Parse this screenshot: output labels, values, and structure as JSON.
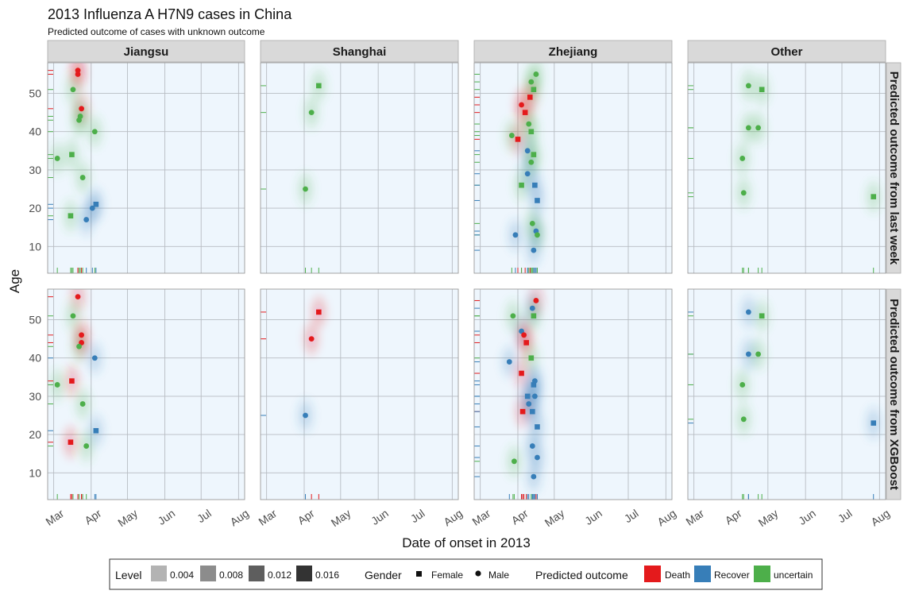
{
  "title": "2013 Influenza A H7N9 cases in China",
  "subtitle": "Predicted outcome of cases with unknown outcome",
  "colors": {
    "Death": "#e41a1c",
    "Recover": "#377eb8",
    "uncertain": "#4daf4a"
  },
  "chart_data": {
    "type": "scatter",
    "xlabel": "Date of onset in 2013",
    "ylabel": "Age",
    "x_ticks": [
      "Mar",
      "Apr",
      "May",
      "Jun",
      "Jul",
      "Aug"
    ],
    "y_ticks": [
      10,
      20,
      30,
      40,
      50
    ],
    "ylim": [
      3,
      58
    ],
    "columns": [
      "Jiangsu",
      "Shanghai",
      "Zhejiang",
      "Other"
    ],
    "rows": [
      "Predicted outcome from last week",
      "Predicted outcome from XGBoost"
    ],
    "legend": {
      "level_title": "Level",
      "levels": [
        "0.004",
        "0.008",
        "0.012",
        "0.016"
      ],
      "gender_title": "Gender",
      "genders": [
        "Female",
        "Male"
      ],
      "outcome_title": "Predicted outcome",
      "outcomes": [
        "Death",
        "Recover",
        "uncertain"
      ]
    },
    "panels": [
      {
        "row": 0,
        "col": 0,
        "points": [
          {
            "date": "2013-03-21",
            "age": 56,
            "gender": "Male",
            "outcome": "Death"
          },
          {
            "date": "2013-03-21",
            "age": 55,
            "gender": "Male",
            "outcome": "Death"
          },
          {
            "date": "2013-03-17",
            "age": 51,
            "gender": "Male",
            "outcome": "uncertain"
          },
          {
            "date": "2013-03-24",
            "age": 46,
            "gender": "Male",
            "outcome": "Death"
          },
          {
            "date": "2013-03-22",
            "age": 43,
            "gender": "Male",
            "outcome": "uncertain"
          },
          {
            "date": "2013-03-23",
            "age": 44,
            "gender": "Male",
            "outcome": "uncertain"
          },
          {
            "date": "2013-04-04",
            "age": 40,
            "gender": "Male",
            "outcome": "uncertain"
          },
          {
            "date": "2013-03-16",
            "age": 34,
            "gender": "Female",
            "outcome": "uncertain"
          },
          {
            "date": "2013-03-04",
            "age": 33,
            "gender": "Male",
            "outcome": "uncertain"
          },
          {
            "date": "2013-03-25",
            "age": 28,
            "gender": "Male",
            "outcome": "uncertain"
          },
          {
            "date": "2013-04-05",
            "age": 21,
            "gender": "Female",
            "outcome": "Recover"
          },
          {
            "date": "2013-04-02",
            "age": 20,
            "gender": "Male",
            "outcome": "Recover"
          },
          {
            "date": "2013-03-15",
            "age": 18,
            "gender": "Female",
            "outcome": "uncertain"
          },
          {
            "date": "2013-03-28",
            "age": 17,
            "gender": "Male",
            "outcome": "Recover"
          }
        ]
      },
      {
        "row": 0,
        "col": 1,
        "points": [
          {
            "date": "2013-04-13",
            "age": 52,
            "gender": "Female",
            "outcome": "uncertain"
          },
          {
            "date": "2013-04-07",
            "age": 45,
            "gender": "Male",
            "outcome": "uncertain"
          },
          {
            "date": "2013-04-02",
            "age": 25,
            "gender": "Male",
            "outcome": "uncertain"
          }
        ]
      },
      {
        "row": 0,
        "col": 2,
        "points": [
          {
            "date": "2013-04-16",
            "age": 55,
            "gender": "Male",
            "outcome": "uncertain"
          },
          {
            "date": "2013-04-12",
            "age": 53,
            "gender": "Male",
            "outcome": "uncertain"
          },
          {
            "date": "2013-04-14",
            "age": 51,
            "gender": "Female",
            "outcome": "uncertain"
          },
          {
            "date": "2013-04-11",
            "age": 49,
            "gender": "Female",
            "outcome": "Death"
          },
          {
            "date": "2013-04-04",
            "age": 47,
            "gender": "Male",
            "outcome": "Death"
          },
          {
            "date": "2013-04-07",
            "age": 45,
            "gender": "Female",
            "outcome": "Death"
          },
          {
            "date": "2013-04-10",
            "age": 42,
            "gender": "Male",
            "outcome": "uncertain"
          },
          {
            "date": "2013-04-12",
            "age": 40,
            "gender": "Female",
            "outcome": "uncertain"
          },
          {
            "date": "2013-03-27",
            "age": 39,
            "gender": "Male",
            "outcome": "uncertain"
          },
          {
            "date": "2013-04-01",
            "age": 38,
            "gender": "Female",
            "outcome": "Death"
          },
          {
            "date": "2013-04-09",
            "age": 35,
            "gender": "Male",
            "outcome": "Recover"
          },
          {
            "date": "2013-04-14",
            "age": 34,
            "gender": "Female",
            "outcome": "uncertain"
          },
          {
            "date": "2013-04-12",
            "age": 32,
            "gender": "Male",
            "outcome": "uncertain"
          },
          {
            "date": "2013-04-09",
            "age": 29,
            "gender": "Male",
            "outcome": "Recover"
          },
          {
            "date": "2013-04-04",
            "age": 26,
            "gender": "Female",
            "outcome": "uncertain"
          },
          {
            "date": "2013-04-15",
            "age": 26,
            "gender": "Female",
            "outcome": "Recover"
          },
          {
            "date": "2013-04-17",
            "age": 22,
            "gender": "Female",
            "outcome": "Recover"
          },
          {
            "date": "2013-04-13",
            "age": 16,
            "gender": "Male",
            "outcome": "uncertain"
          },
          {
            "date": "2013-04-16",
            "age": 14,
            "gender": "Male",
            "outcome": "Recover"
          },
          {
            "date": "2013-04-17",
            "age": 13,
            "gender": "Male",
            "outcome": "uncertain"
          },
          {
            "date": "2013-03-30",
            "age": 13,
            "gender": "Male",
            "outcome": "Recover"
          },
          {
            "date": "2013-04-14",
            "age": 9,
            "gender": "Male",
            "outcome": "Recover"
          }
        ]
      },
      {
        "row": 0,
        "col": 3,
        "points": [
          {
            "date": "2013-04-15",
            "age": 52,
            "gender": "Male",
            "outcome": "uncertain"
          },
          {
            "date": "2013-04-26",
            "age": 51,
            "gender": "Female",
            "outcome": "uncertain"
          },
          {
            "date": "2013-04-15",
            "age": 41,
            "gender": "Male",
            "outcome": "uncertain"
          },
          {
            "date": "2013-04-23",
            "age": 41,
            "gender": "Male",
            "outcome": "uncertain"
          },
          {
            "date": "2013-04-10",
            "age": 33,
            "gender": "Male",
            "outcome": "uncertain"
          },
          {
            "date": "2013-04-11",
            "age": 24,
            "gender": "Male",
            "outcome": "uncertain"
          },
          {
            "date": "2013-07-27",
            "age": 23,
            "gender": "Female",
            "outcome": "uncertain"
          }
        ]
      },
      {
        "row": 1,
        "col": 0,
        "points": [
          {
            "date": "2013-03-21",
            "age": 56,
            "gender": "Male",
            "outcome": "Death"
          },
          {
            "date": "2013-03-17",
            "age": 51,
            "gender": "Male",
            "outcome": "uncertain"
          },
          {
            "date": "2013-03-24",
            "age": 46,
            "gender": "Male",
            "outcome": "Death"
          },
          {
            "date": "2013-03-24",
            "age": 44,
            "gender": "Male",
            "outcome": "Death"
          },
          {
            "date": "2013-03-22",
            "age": 43,
            "gender": "Male",
            "outcome": "uncertain"
          },
          {
            "date": "2013-04-04",
            "age": 40,
            "gender": "Male",
            "outcome": "Recover"
          },
          {
            "date": "2013-03-16",
            "age": 34,
            "gender": "Female",
            "outcome": "Death"
          },
          {
            "date": "2013-03-04",
            "age": 33,
            "gender": "Male",
            "outcome": "uncertain"
          },
          {
            "date": "2013-03-25",
            "age": 28,
            "gender": "Male",
            "outcome": "uncertain"
          },
          {
            "date": "2013-04-05",
            "age": 21,
            "gender": "Female",
            "outcome": "Recover"
          },
          {
            "date": "2013-03-15",
            "age": 18,
            "gender": "Female",
            "outcome": "Death"
          },
          {
            "date": "2013-03-28",
            "age": 17,
            "gender": "Male",
            "outcome": "uncertain"
          }
        ]
      },
      {
        "row": 1,
        "col": 1,
        "points": [
          {
            "date": "2013-04-13",
            "age": 52,
            "gender": "Female",
            "outcome": "Death"
          },
          {
            "date": "2013-04-07",
            "age": 45,
            "gender": "Male",
            "outcome": "Death"
          },
          {
            "date": "2013-04-02",
            "age": 25,
            "gender": "Male",
            "outcome": "Recover"
          }
        ]
      },
      {
        "row": 1,
        "col": 2,
        "points": [
          {
            "date": "2013-04-16",
            "age": 55,
            "gender": "Male",
            "outcome": "Death"
          },
          {
            "date": "2013-04-13",
            "age": 53,
            "gender": "Male",
            "outcome": "Recover"
          },
          {
            "date": "2013-04-14",
            "age": 51,
            "gender": "Female",
            "outcome": "uncertain"
          },
          {
            "date": "2013-03-28",
            "age": 51,
            "gender": "Male",
            "outcome": "uncertain"
          },
          {
            "date": "2013-04-04",
            "age": 47,
            "gender": "Male",
            "outcome": "Recover"
          },
          {
            "date": "2013-04-06",
            "age": 46,
            "gender": "Male",
            "outcome": "Death"
          },
          {
            "date": "2013-04-08",
            "age": 44,
            "gender": "Female",
            "outcome": "Death"
          },
          {
            "date": "2013-04-12",
            "age": 40,
            "gender": "Female",
            "outcome": "uncertain"
          },
          {
            "date": "2013-03-25",
            "age": 39,
            "gender": "Male",
            "outcome": "Recover"
          },
          {
            "date": "2013-04-04",
            "age": 36,
            "gender": "Female",
            "outcome": "Death"
          },
          {
            "date": "2013-04-15",
            "age": 34,
            "gender": "Male",
            "outcome": "Recover"
          },
          {
            "date": "2013-04-14",
            "age": 33,
            "gender": "Female",
            "outcome": "Recover"
          },
          {
            "date": "2013-04-09",
            "age": 30,
            "gender": "Female",
            "outcome": "Recover"
          },
          {
            "date": "2013-04-15",
            "age": 30,
            "gender": "Male",
            "outcome": "Recover"
          },
          {
            "date": "2013-04-10",
            "age": 28,
            "gender": "Male",
            "outcome": "Recover"
          },
          {
            "date": "2013-04-05",
            "age": 26,
            "gender": "Female",
            "outcome": "Death"
          },
          {
            "date": "2013-04-13",
            "age": 26,
            "gender": "Female",
            "outcome": "Recover"
          },
          {
            "date": "2013-04-17",
            "age": 22,
            "gender": "Female",
            "outcome": "Recover"
          },
          {
            "date": "2013-04-13",
            "age": 17,
            "gender": "Male",
            "outcome": "Recover"
          },
          {
            "date": "2013-04-17",
            "age": 14,
            "gender": "Male",
            "outcome": "Recover"
          },
          {
            "date": "2013-03-29",
            "age": 13,
            "gender": "Male",
            "outcome": "uncertain"
          },
          {
            "date": "2013-04-14",
            "age": 9,
            "gender": "Male",
            "outcome": "Recover"
          }
        ]
      },
      {
        "row": 1,
        "col": 3,
        "points": [
          {
            "date": "2013-04-15",
            "age": 52,
            "gender": "Male",
            "outcome": "Recover"
          },
          {
            "date": "2013-04-26",
            "age": 51,
            "gender": "Female",
            "outcome": "uncertain"
          },
          {
            "date": "2013-04-15",
            "age": 41,
            "gender": "Male",
            "outcome": "Recover"
          },
          {
            "date": "2013-04-23",
            "age": 41,
            "gender": "Male",
            "outcome": "uncertain"
          },
          {
            "date": "2013-04-10",
            "age": 33,
            "gender": "Male",
            "outcome": "uncertain"
          },
          {
            "date": "2013-04-11",
            "age": 24,
            "gender": "Male",
            "outcome": "uncertain"
          },
          {
            "date": "2013-07-27",
            "age": 23,
            "gender": "Female",
            "outcome": "Recover"
          }
        ]
      }
    ]
  }
}
